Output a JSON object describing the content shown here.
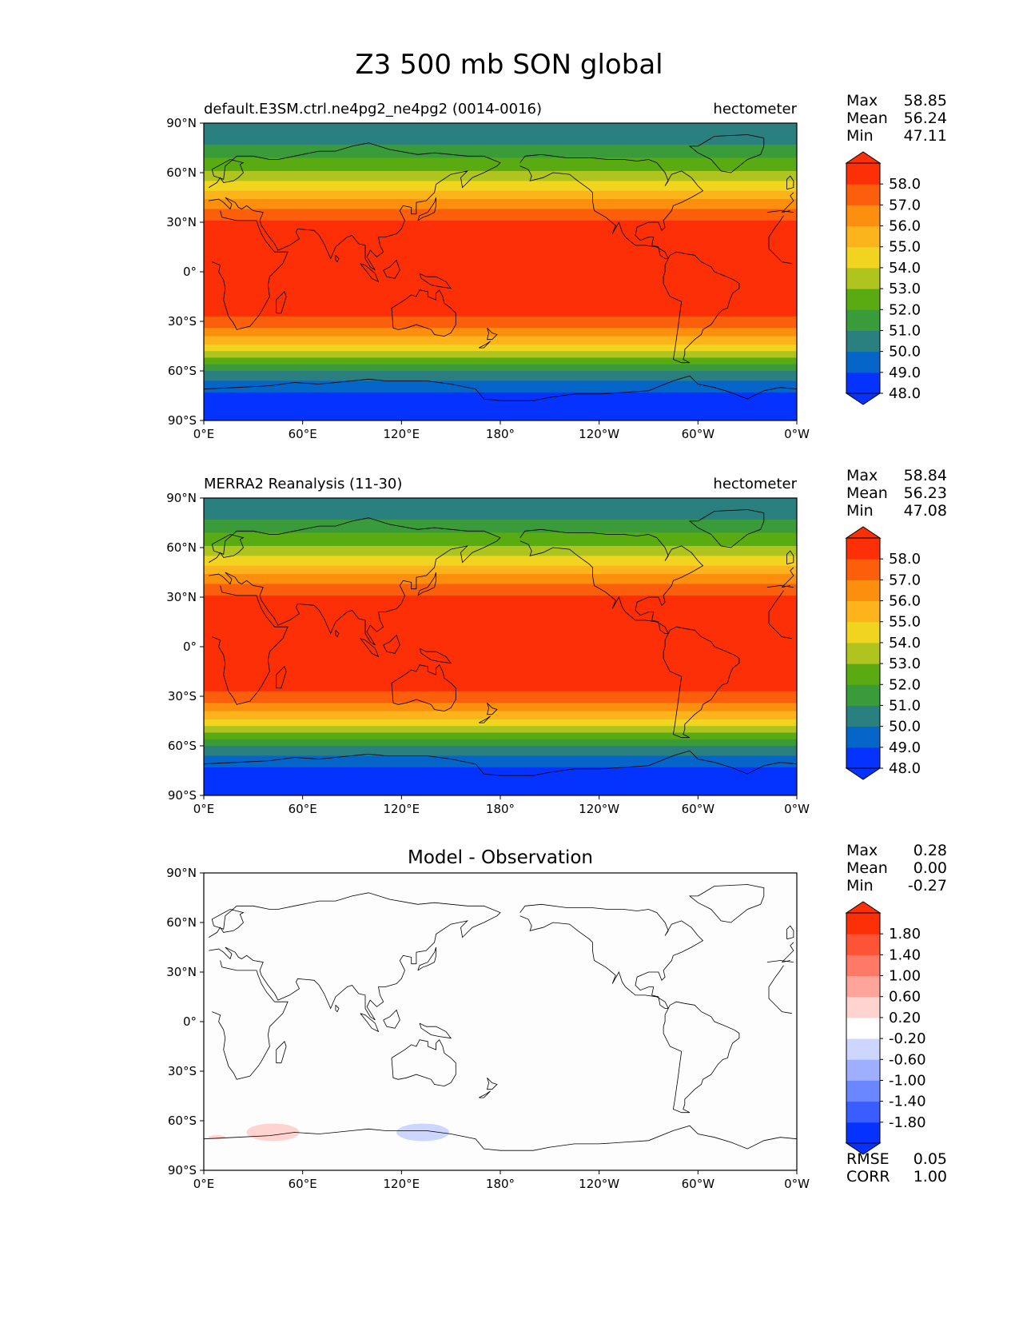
{
  "figure": {
    "title": "Z3 500 mb SON global"
  },
  "colors": {
    "field_levels": [
      "#0532ff",
      "#0565c8",
      "#2a7f7f",
      "#3a9b3a",
      "#5aaa12",
      "#afc41f",
      "#f1d41f",
      "#fdb31b",
      "#fc8f0e",
      "#fb5f0c",
      "#fc2f07"
    ],
    "diff_levels": [
      "#0532ff",
      "#3a5dff",
      "#6b87ff",
      "#9eafff",
      "#ccd6ff",
      "#ffffff",
      "#ffd3cf",
      "#fea49a",
      "#fe7a66",
      "#fd5437",
      "#fc2f07"
    ],
    "coastline": "#000000"
  },
  "chart_data": [
    {
      "type": "heatmap",
      "id": "test",
      "left_title": "default.E3SM.ctrl.ne4pg2_ne4pg2 (0014-0016)",
      "right_title": "hectometer",
      "stats": [
        {
          "label": "Max",
          "value": "58.85"
        },
        {
          "label": "Mean",
          "value": "56.24"
        },
        {
          "label": "Min",
          "value": "47.11"
        }
      ],
      "colorbar_ticks": [
        "58.0",
        "57.0",
        "56.0",
        "55.0",
        "54.0",
        "53.0",
        "52.0",
        "51.0",
        "50.0",
        "49.0",
        "48.0"
      ],
      "x_ticks": [
        "0°E",
        "60°E",
        "120°E",
        "180°",
        "120°W",
        "60°W",
        "0°W"
      ],
      "y_ticks": [
        "90°N",
        "60°N",
        "30°N",
        "0°",
        "30°S",
        "60°S",
        "90°S"
      ],
      "xlim": [
        0,
        360
      ],
      "ylim": [
        -90,
        90
      ],
      "zonal_profile": [
        {
          "lat": 90,
          "value": 49.5
        },
        {
          "lat": 80,
          "value": 50.1
        },
        {
          "lat": 70,
          "value": 51.3
        },
        {
          "lat": 60,
          "value": 52.7
        },
        {
          "lat": 50,
          "value": 54.3
        },
        {
          "lat": 40,
          "value": 56.2
        },
        {
          "lat": 30,
          "value": 57.6
        },
        {
          "lat": 20,
          "value": 58.3
        },
        {
          "lat": 0,
          "value": 58.6
        },
        {
          "lat": -20,
          "value": 58.2
        },
        {
          "lat": -30,
          "value": 57.2
        },
        {
          "lat": -40,
          "value": 55.4
        },
        {
          "lat": -50,
          "value": 53.0
        },
        {
          "lat": -60,
          "value": 50.4
        },
        {
          "lat": -70,
          "value": 48.8
        },
        {
          "lat": -80,
          "value": 47.6
        },
        {
          "lat": -90,
          "value": 47.3
        }
      ]
    },
    {
      "type": "heatmap",
      "id": "reference",
      "left_title": "MERRA2 Reanalysis (11-30)",
      "right_title": "hectometer",
      "stats": [
        {
          "label": "Max",
          "value": "58.84"
        },
        {
          "label": "Mean",
          "value": "56.23"
        },
        {
          "label": "Min",
          "value": "47.08"
        }
      ],
      "colorbar_ticks": [
        "58.0",
        "57.0",
        "56.0",
        "55.0",
        "54.0",
        "53.0",
        "52.0",
        "51.0",
        "50.0",
        "49.0",
        "48.0"
      ],
      "x_ticks": [
        "0°E",
        "60°E",
        "120°E",
        "180°",
        "120°W",
        "60°W",
        "0°W"
      ],
      "y_ticks": [
        "90°N",
        "60°N",
        "30°N",
        "0°",
        "30°S",
        "60°S",
        "90°S"
      ],
      "xlim": [
        0,
        360
      ],
      "ylim": [
        -90,
        90
      ],
      "zonal_profile": [
        {
          "lat": 90,
          "value": 49.5
        },
        {
          "lat": 80,
          "value": 50.1
        },
        {
          "lat": 70,
          "value": 51.3
        },
        {
          "lat": 60,
          "value": 52.7
        },
        {
          "lat": 50,
          "value": 54.3
        },
        {
          "lat": 40,
          "value": 56.2
        },
        {
          "lat": 30,
          "value": 57.6
        },
        {
          "lat": 20,
          "value": 58.3
        },
        {
          "lat": 0,
          "value": 58.6
        },
        {
          "lat": -20,
          "value": 58.2
        },
        {
          "lat": -30,
          "value": 57.2
        },
        {
          "lat": -40,
          "value": 55.4
        },
        {
          "lat": -50,
          "value": 53.0
        },
        {
          "lat": -60,
          "value": 50.4
        },
        {
          "lat": -70,
          "value": 48.8
        },
        {
          "lat": -80,
          "value": 47.6
        },
        {
          "lat": -90,
          "value": 47.3
        }
      ]
    },
    {
      "type": "heatmap",
      "id": "difference",
      "title": "Model - Observation",
      "stats": [
        {
          "label": "Max",
          "value": "0.28"
        },
        {
          "label": "Mean",
          "value": "0.00"
        },
        {
          "label": "Min",
          "value": "-0.27"
        }
      ],
      "colorbar_ticks": [
        "1.80",
        "1.40",
        "1.00",
        "0.60",
        "0.20",
        "-0.20",
        "-0.60",
        "-1.00",
        "-1.40",
        "-1.80"
      ],
      "metrics": [
        {
          "label": "RMSE",
          "value": "0.05"
        },
        {
          "label": "CORR",
          "value": "1.00"
        }
      ],
      "x_ticks": [
        "0°E",
        "60°E",
        "120°E",
        "180°",
        "120°W",
        "60°W",
        "0°W"
      ],
      "y_ticks": [
        "90°N",
        "60°N",
        "30°N",
        "0°",
        "30°S",
        "60°S",
        "90°S"
      ],
      "xlim": [
        0,
        360
      ],
      "ylim": [
        -90,
        90
      ],
      "anomalies": [
        {
          "lon": 42,
          "lat": -67,
          "value": 0.25
        },
        {
          "lon": 8,
          "lat": -70,
          "value": 0.22
        },
        {
          "lon": 133,
          "lat": -67,
          "value": -0.25
        }
      ]
    }
  ]
}
